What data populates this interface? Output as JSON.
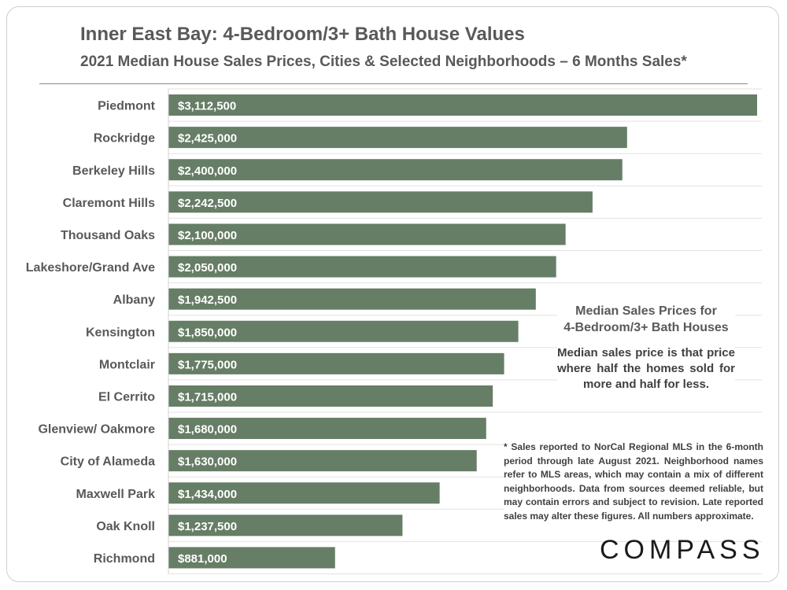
{
  "header": {
    "title": "Inner East Bay: 4-Bedroom/3+ Bath House Values",
    "subtitle": "2021 Median House Sales Prices, Cities & Selected Neighborhoods  – 6 Months Sales*"
  },
  "chart_data": {
    "type": "bar",
    "orientation": "horizontal",
    "title": "Inner East Bay: 4-Bedroom/3+ Bath House Values",
    "subtitle": "2021 Median House Sales Prices, Cities & Selected Neighborhoods  – 6 Months Sales*",
    "xlabel": "",
    "ylabel": "",
    "xlim": [
      0,
      3112500
    ],
    "grid": "horizontal",
    "bar_color": "#667d66",
    "categories": [
      "Piedmont",
      "Rockridge",
      "Berkeley Hills",
      "Claremont Hills",
      "Thousand Oaks",
      "Lakeshore/Grand Ave",
      "Albany",
      "Kensington",
      "Montclair",
      "El Cerrito",
      "Glenview/ Oakmore",
      "City of Alameda",
      "Maxwell Park",
      "Oak Knoll",
      "Richmond"
    ],
    "values": [
      3112500,
      2425000,
      2400000,
      2242500,
      2100000,
      2050000,
      1942500,
      1850000,
      1775000,
      1715000,
      1680000,
      1630000,
      1434000,
      1237500,
      881000
    ],
    "data_labels": [
      "$3,112,500",
      "$2,425,000",
      "$2,400,000",
      "$2,242,500",
      "$2,100,000",
      "$2,050,000",
      "$1,942,500",
      "$1,850,000",
      "$1,775,000",
      "$1,715,000",
      "$1,680,000",
      "$1,630,000",
      "$1,434,000",
      "$1,237,500",
      "$881,000"
    ]
  },
  "legend": {
    "title_line1": "Median Sales Prices for",
    "title_line2": "4-Bedroom/3+ Bath Houses",
    "text": "Median sales price is that price where half the homes sold for more and half for less."
  },
  "footnote": "* Sales reported to NorCal Regional MLS in the 6-month period through late August 2021. Neighborhood names refer to MLS areas, which may contain a mix of different neighborhoods. Data from sources deemed reliable, but may contain errors and subject to revision. Late reported sales may alter these figures. All numbers approximate.",
  "brand": {
    "logo_text": "COMPASS"
  }
}
